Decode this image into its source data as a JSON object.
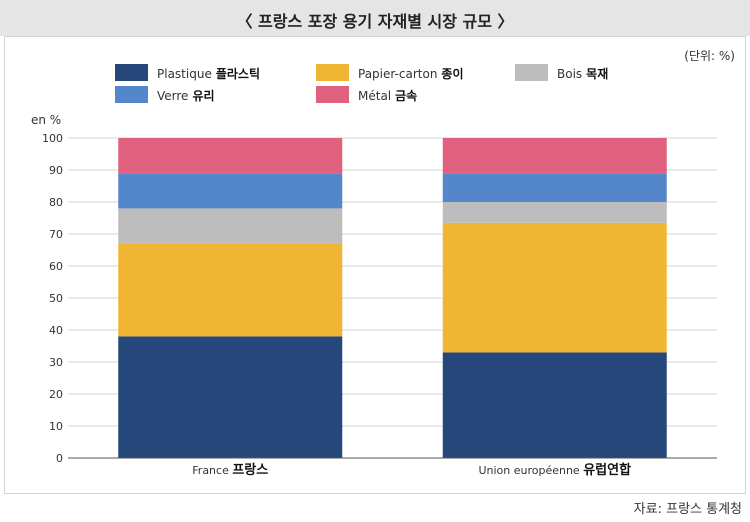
{
  "header": {
    "title": "〈 프랑스 포장 용기 자재별 시장 규모 〉"
  },
  "unit_note": "(단위: %)",
  "source_note": "자료: 프랑스 통계청",
  "legend": [
    {
      "fr": "Plastique",
      "ko": "플라스틱",
      "color": "#26477a"
    },
    {
      "fr": "Papier-carton",
      "ko": "종이",
      "color": "#f0b533"
    },
    {
      "fr": "Bois",
      "ko": "목재",
      "color": "#bdbdbd"
    },
    {
      "fr": "Verre",
      "ko": "유리",
      "color": "#5486cc"
    },
    {
      "fr": "Métal",
      "ko": "금속",
      "color": "#e0617d"
    }
  ],
  "chart_data": {
    "type": "bar",
    "stacked": true,
    "ylabel": "en %",
    "ylim": [
      0,
      100
    ],
    "yticks": [
      0,
      10,
      20,
      30,
      40,
      50,
      60,
      70,
      80,
      90,
      100
    ],
    "grid": true,
    "legend_position": "top",
    "categories": [
      {
        "fr": "France",
        "ko": "프랑스"
      },
      {
        "fr": "Union européenne",
        "ko": "유럽연합"
      }
    ],
    "series": [
      {
        "name": "Plastique 플라스틱",
        "color": "#26477a",
        "values": [
          38,
          33
        ]
      },
      {
        "name": "Papier-carton 종이",
        "color": "#f0b533",
        "values": [
          29,
          40.5
        ]
      },
      {
        "name": "Bois 목재",
        "color": "#bdbdbd",
        "values": [
          11,
          6.5
        ]
      },
      {
        "name": "Verre 유리",
        "color": "#5486cc",
        "values": [
          11,
          9
        ]
      },
      {
        "name": "Métal 금속",
        "color": "#e0617d",
        "values": [
          11,
          11
        ]
      }
    ]
  }
}
